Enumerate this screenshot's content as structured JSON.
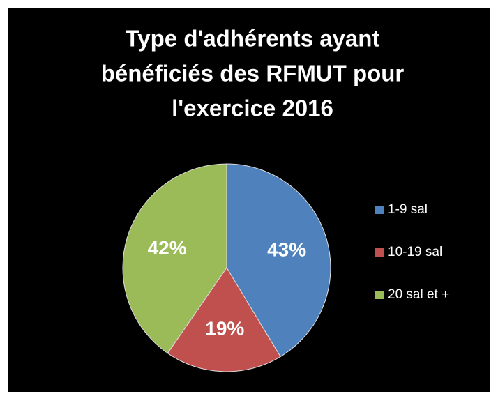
{
  "chart_data": {
    "type": "pie",
    "title": [
      "Type d'adhérents ayant",
      "bénéficiés des RFMUT pour",
      "l'exercice 2016"
    ],
    "categories": [
      "1-9 sal",
      "10-19 sal",
      "20 sal et +"
    ],
    "values": [
      43,
      19,
      42
    ],
    "value_labels": [
      "43%",
      "19%",
      "42%"
    ],
    "colors": [
      "#4f81bd",
      "#c0504d",
      "#9bbb59"
    ],
    "legend": "right"
  }
}
